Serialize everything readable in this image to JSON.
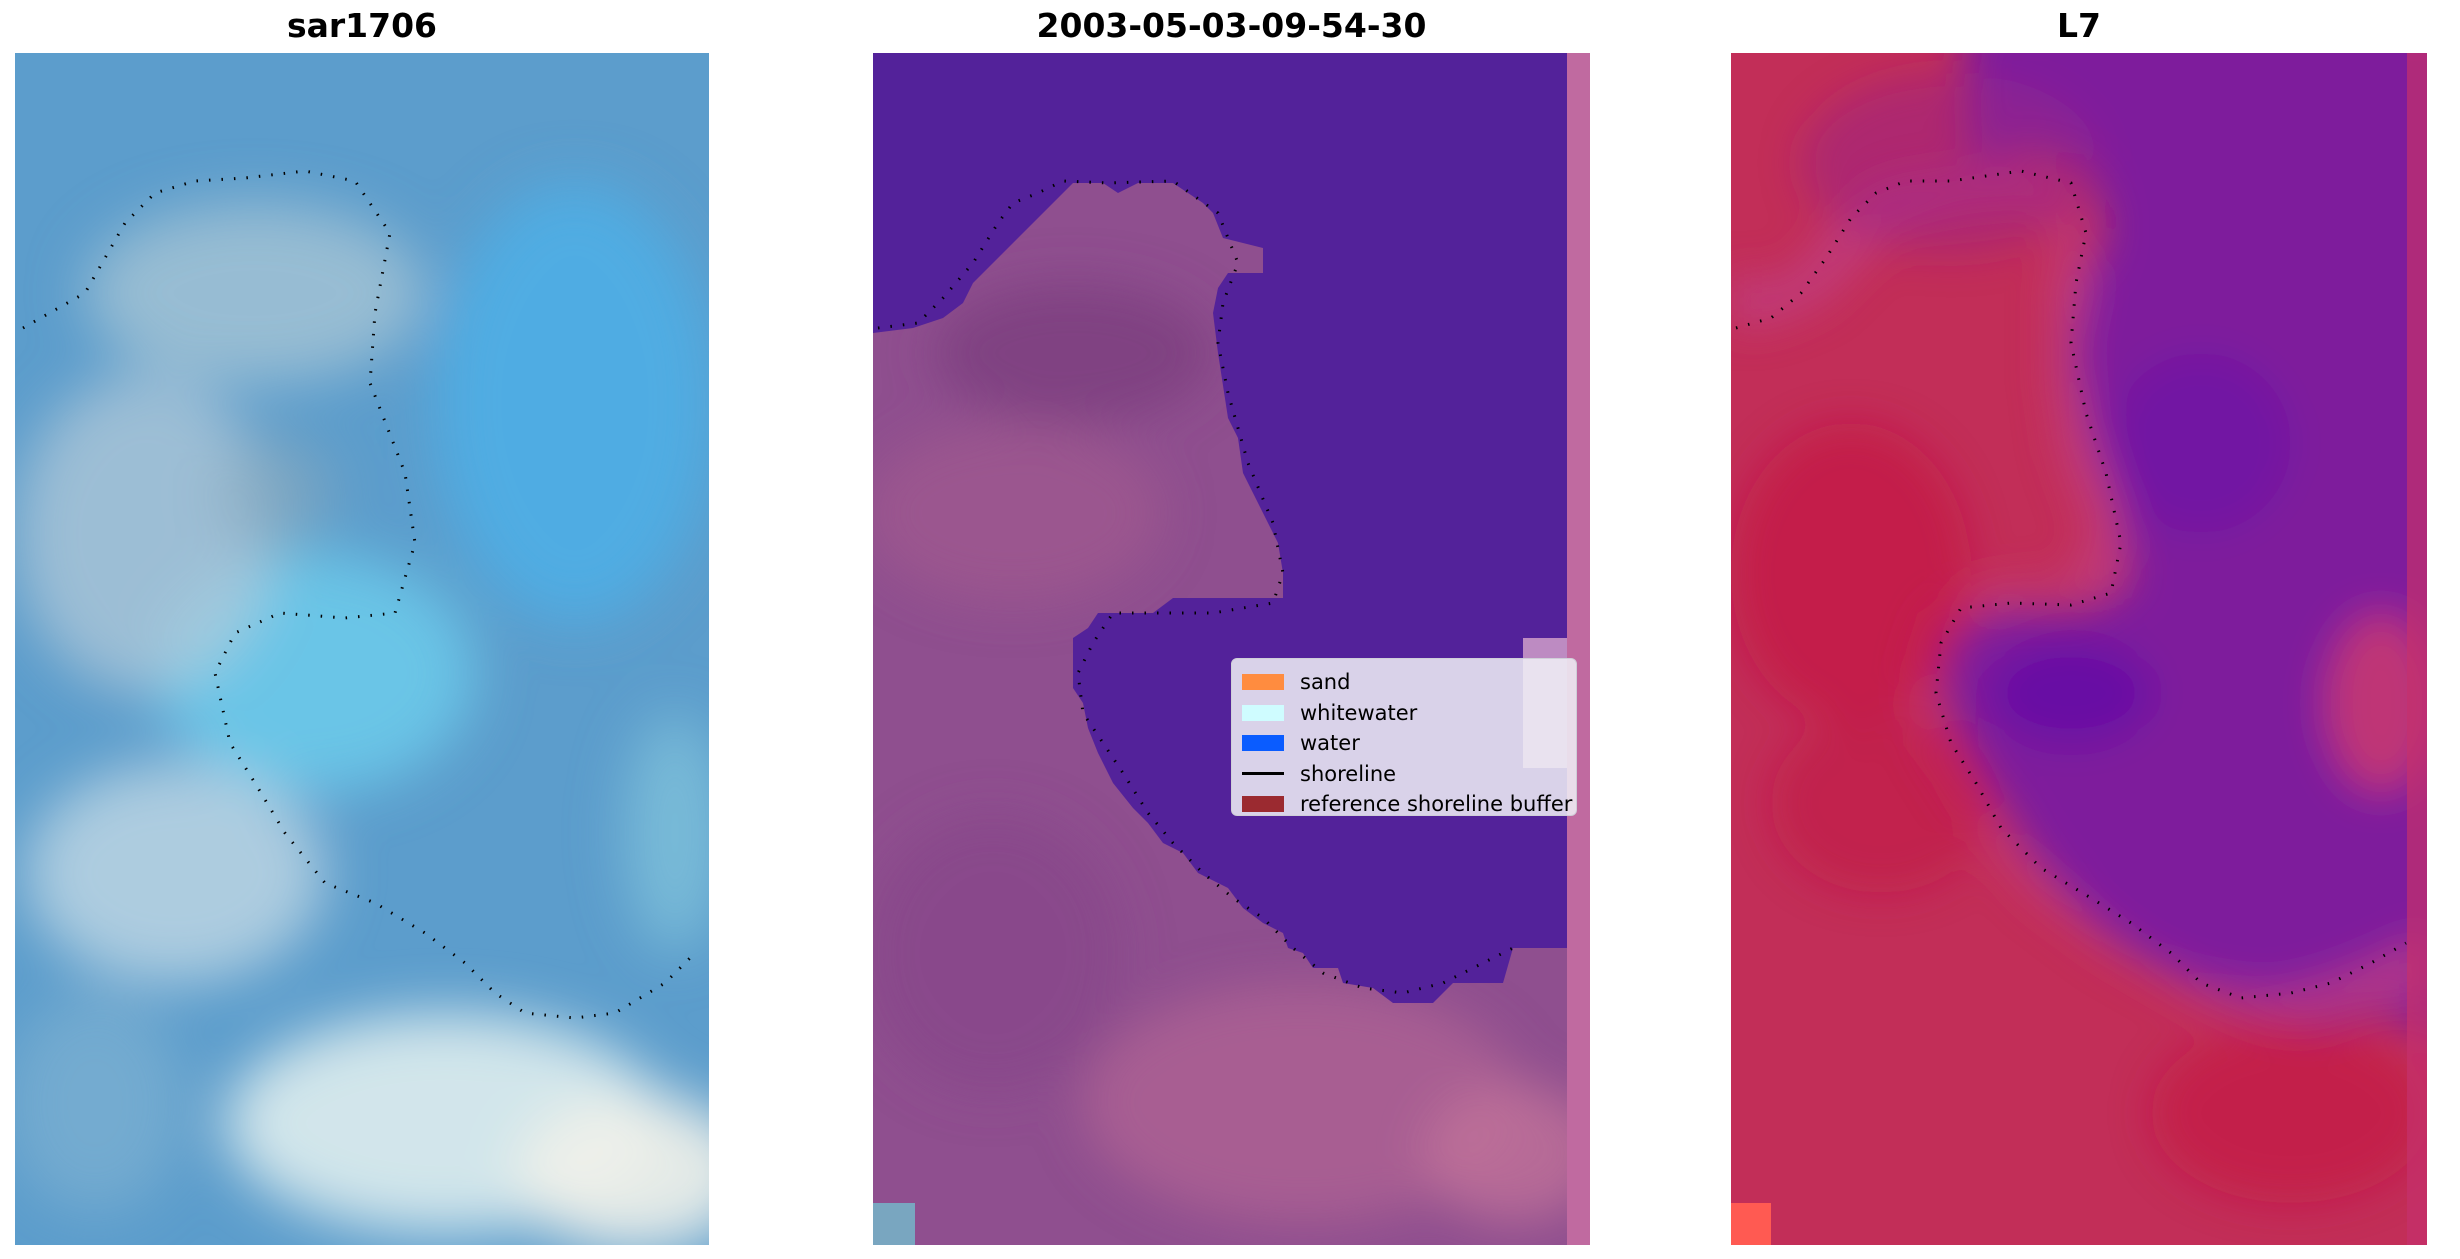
{
  "panels": [
    {
      "title": "sar1706"
    },
    {
      "title": "2003-05-03-09-54-30"
    },
    {
      "title": "L7"
    }
  ],
  "legend": [
    {
      "label": "sand",
      "color": "#ff8c3f",
      "kind": "patch"
    },
    {
      "label": "whitewater",
      "color": "#cffcff",
      "kind": "patch"
    },
    {
      "label": "water",
      "color": "#0a5cff",
      "kind": "patch"
    },
    {
      "label": "shoreline",
      "color": "#000000",
      "kind": "line"
    },
    {
      "label": "reference shoreline buffer",
      "color": "#9b2a30",
      "kind": "patch"
    }
  ],
  "colors": {
    "rgb_base": "#5d9cca",
    "water_class": "#52229a",
    "land_class": "#8e4f8f",
    "land_index": "#c22e57",
    "water_index": "#7c1f9e"
  }
}
